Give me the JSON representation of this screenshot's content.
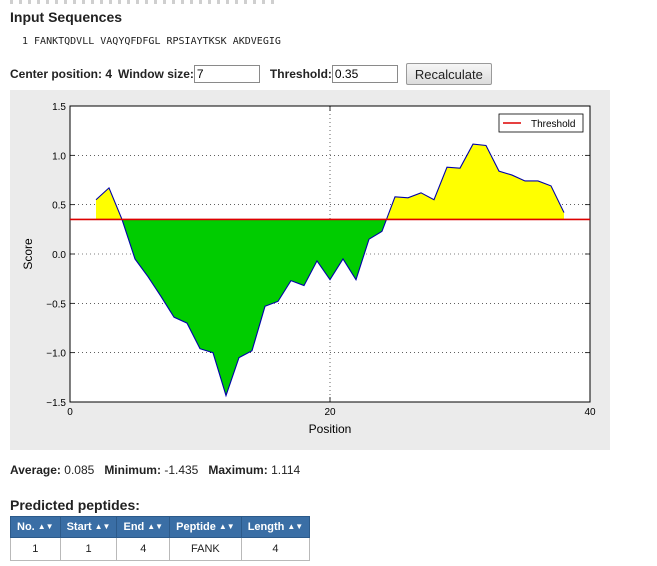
{
  "page": {
    "sequence_title": "Input Sequences",
    "sequence_line": "1 FANKTQDVLL VAQYQFDFGL RPSIAYTKSK AKDVEGIG"
  },
  "controls": {
    "center_label": "Center position: 4",
    "window_label": "Window size:",
    "window_value": "7",
    "threshold_label": "Threshold:",
    "threshold_value": "0.35",
    "recalc_label": "Recalculate"
  },
  "stats": {
    "average_label": "Average:",
    "average": "0.085",
    "minimum_label": "Minimum:",
    "minimum": "-1.435",
    "maximum_label": "Maximum:",
    "maximum": "1.114"
  },
  "peptides": {
    "title": "Predicted peptides:",
    "headers": [
      "No.",
      "Start",
      "End",
      "Peptide",
      "Length"
    ],
    "rows": [
      {
        "no": "1",
        "start": "1",
        "end": "4",
        "peptide": "FANK",
        "length": "4"
      }
    ]
  },
  "colors": {
    "above_fill": "#ffff00",
    "below_fill": "#00cc00",
    "line": "#0000aa",
    "threshold": "#dd0000",
    "header_bg": "#3a6ea5"
  },
  "chart_data": {
    "type": "area",
    "xlabel": "Position",
    "ylabel": "Score",
    "xlim": [
      0,
      40
    ],
    "ylim": [
      -1.5,
      1.5
    ],
    "xticks": [
      "0",
      "20",
      "40"
    ],
    "yticks": [
      "1.5",
      "1.0",
      "0.5",
      "0.0",
      "−0.5",
      "−1.0",
      "−1.5"
    ],
    "grid": true,
    "legend": "top-right",
    "threshold": 0.35,
    "series": [
      {
        "name": "Threshold",
        "values": [
          0.35,
          0.35
        ]
      },
      {
        "x": [
          2,
          3,
          4,
          5,
          6,
          7,
          8,
          9,
          10,
          11,
          12,
          13,
          14,
          15,
          16,
          17,
          18,
          19,
          20,
          21,
          22,
          23,
          24,
          25,
          26,
          27,
          28,
          29,
          30,
          31,
          32,
          33,
          34,
          35,
          36,
          37,
          38
        ],
        "values": [
          0.55,
          0.67,
          0.35,
          -0.05,
          -0.23,
          -0.43,
          -0.64,
          -0.7,
          -0.96,
          -1.0,
          -1.435,
          -1.05,
          -0.98,
          -0.53,
          -0.48,
          -0.27,
          -0.32,
          -0.07,
          -0.26,
          -0.05,
          -0.26,
          0.15,
          0.23,
          0.58,
          0.57,
          0.62,
          0.55,
          0.88,
          0.87,
          1.114,
          1.1,
          0.84,
          0.8,
          0.74,
          0.74,
          0.69,
          0.42
        ]
      }
    ]
  }
}
